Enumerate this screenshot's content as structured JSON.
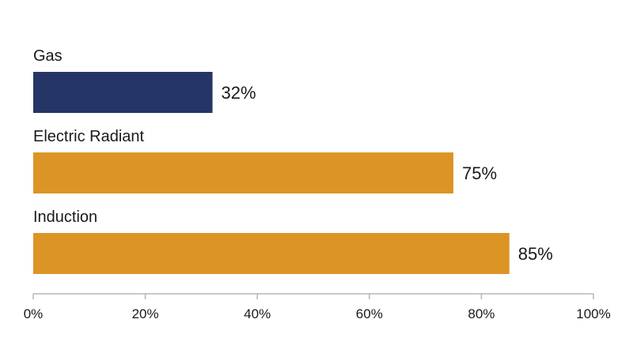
{
  "chart_data": {
    "type": "bar",
    "orientation": "horizontal",
    "categories": [
      "Gas",
      "Electric Radiant",
      "Induction"
    ],
    "values": [
      32,
      75,
      85
    ],
    "value_labels": [
      "32%",
      "75%",
      "85%"
    ],
    "bar_colors": [
      "#253565",
      "#dc9525",
      "#dc9525"
    ],
    "xlim": [
      0,
      100
    ],
    "x_ticks": [
      0,
      20,
      40,
      60,
      80,
      100
    ],
    "x_tick_labels": [
      "0%",
      "20%",
      "40%",
      "60%",
      "80%",
      "100%"
    ],
    "grid": false,
    "legend": "none"
  }
}
